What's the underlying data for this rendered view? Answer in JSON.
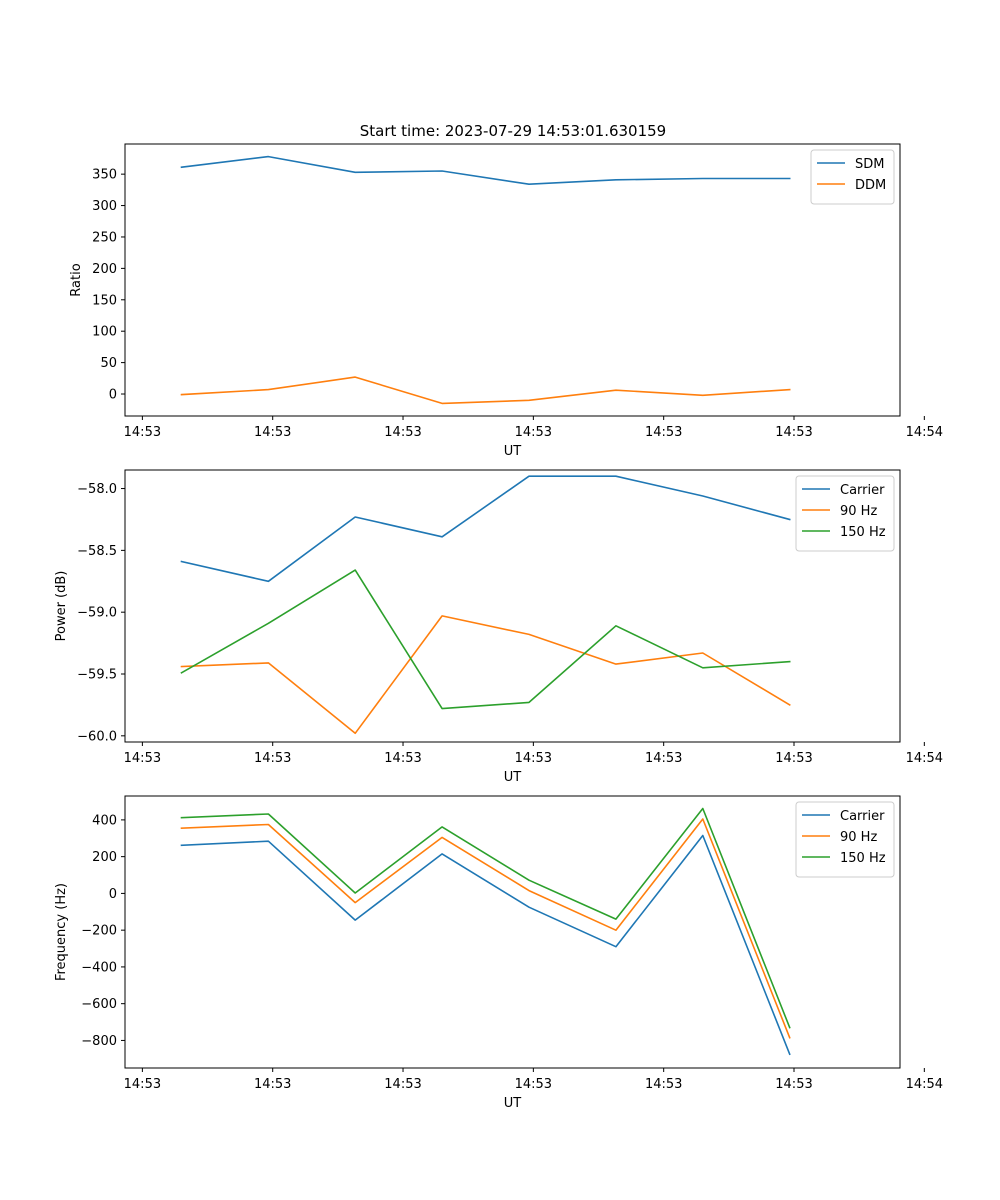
{
  "figure_title": "Start time: 2023-07-29 14:53:01.630159",
  "colors": {
    "blue": "#1f77b4",
    "orange": "#ff7f0e",
    "green": "#2ca02c"
  },
  "chart_data": [
    {
      "type": "line",
      "title": "Start time: 2023-07-29 14:53:01.630159",
      "xlabel": "UT",
      "ylabel": "Ratio",
      "x": [
        1,
        2,
        3,
        4,
        5,
        6,
        7,
        8
      ],
      "xlim": [
        0.35,
        9.27
      ],
      "ylim": [
        -35,
        398
      ],
      "xticks": [
        0.55,
        2.05,
        3.55,
        5.05,
        6.55,
        8.05,
        9.55
      ],
      "xtick_labels": [
        "14:53",
        "14:53",
        "14:53",
        "14:53",
        "14:53",
        "14:53",
        "14:54"
      ],
      "yticks": [
        0,
        50,
        100,
        150,
        200,
        250,
        300,
        350
      ],
      "ytick_labels": [
        "0",
        "50",
        "100",
        "150",
        "200",
        "250",
        "300",
        "350"
      ],
      "legend": "top-right",
      "series": [
        {
          "name": "SDM",
          "color": "#1f77b4",
          "values": [
            361,
            378,
            353,
            355,
            334,
            341,
            343,
            343
          ]
        },
        {
          "name": "DDM",
          "color": "#ff7f0e",
          "values": [
            -1,
            7,
            27,
            -15,
            -10,
            6,
            -2,
            7
          ]
        }
      ]
    },
    {
      "type": "line",
      "title": "",
      "xlabel": "UT",
      "ylabel": "Power (dB)",
      "x": [
        1,
        2,
        3,
        4,
        5,
        6,
        7,
        8
      ],
      "xlim": [
        0.35,
        9.27
      ],
      "ylim": [
        -60.05,
        -57.85
      ],
      "xticks": [
        0.55,
        2.05,
        3.55,
        5.05,
        6.55,
        8.05,
        9.55
      ],
      "xtick_labels": [
        "14:53",
        "14:53",
        "14:53",
        "14:53",
        "14:53",
        "14:53",
        "14:54"
      ],
      "yticks": [
        -60.0,
        -59.5,
        -59.0,
        -58.5,
        -58.0
      ],
      "ytick_labels": [
        "−60.0",
        "−59.5",
        "−59.0",
        "−58.5",
        "−58.0"
      ],
      "legend": "top-right",
      "series": [
        {
          "name": "Carrier",
          "color": "#1f77b4",
          "values": [
            -58.59,
            -58.75,
            -58.23,
            -58.39,
            -57.9,
            -57.9,
            -58.06,
            -58.25
          ]
        },
        {
          "name": "90 Hz",
          "color": "#ff7f0e",
          "values": [
            -59.44,
            -59.41,
            -59.98,
            -59.03,
            -59.18,
            -59.42,
            -59.33,
            -59.75
          ]
        },
        {
          "name": "150 Hz",
          "color": "#2ca02c",
          "values": [
            -59.49,
            -59.09,
            -58.66,
            -59.78,
            -59.73,
            -59.11,
            -59.45,
            -59.4
          ]
        }
      ]
    },
    {
      "type": "line",
      "title": "",
      "xlabel": "UT",
      "ylabel": "Frequency (Hz)",
      "x": [
        1,
        2,
        3,
        4,
        5,
        6,
        7,
        8
      ],
      "xlim": [
        0.35,
        9.27
      ],
      "ylim": [
        -950,
        530
      ],
      "xticks": [
        0.55,
        2.05,
        3.55,
        5.05,
        6.55,
        8.05,
        9.55
      ],
      "xtick_labels": [
        "14:53",
        "14:53",
        "14:53",
        "14:53",
        "14:53",
        "14:53",
        "14:54"
      ],
      "yticks": [
        -800,
        -600,
        -400,
        -200,
        0,
        200,
        400
      ],
      "ytick_labels": [
        "−800",
        "−600",
        "−400",
        "−200",
        "0",
        "200",
        "400"
      ],
      "legend": "top-right",
      "series": [
        {
          "name": "Carrier",
          "color": "#1f77b4",
          "values": [
            262,
            284,
            -145,
            215,
            -75,
            -290,
            315,
            -875
          ]
        },
        {
          "name": "90 Hz",
          "color": "#ff7f0e",
          "values": [
            355,
            375,
            -50,
            305,
            15,
            -200,
            405,
            -785
          ]
        },
        {
          "name": "150 Hz",
          "color": "#2ca02c",
          "values": [
            412,
            432,
            2,
            362,
            72,
            -140,
            462,
            -730
          ]
        }
      ]
    }
  ]
}
